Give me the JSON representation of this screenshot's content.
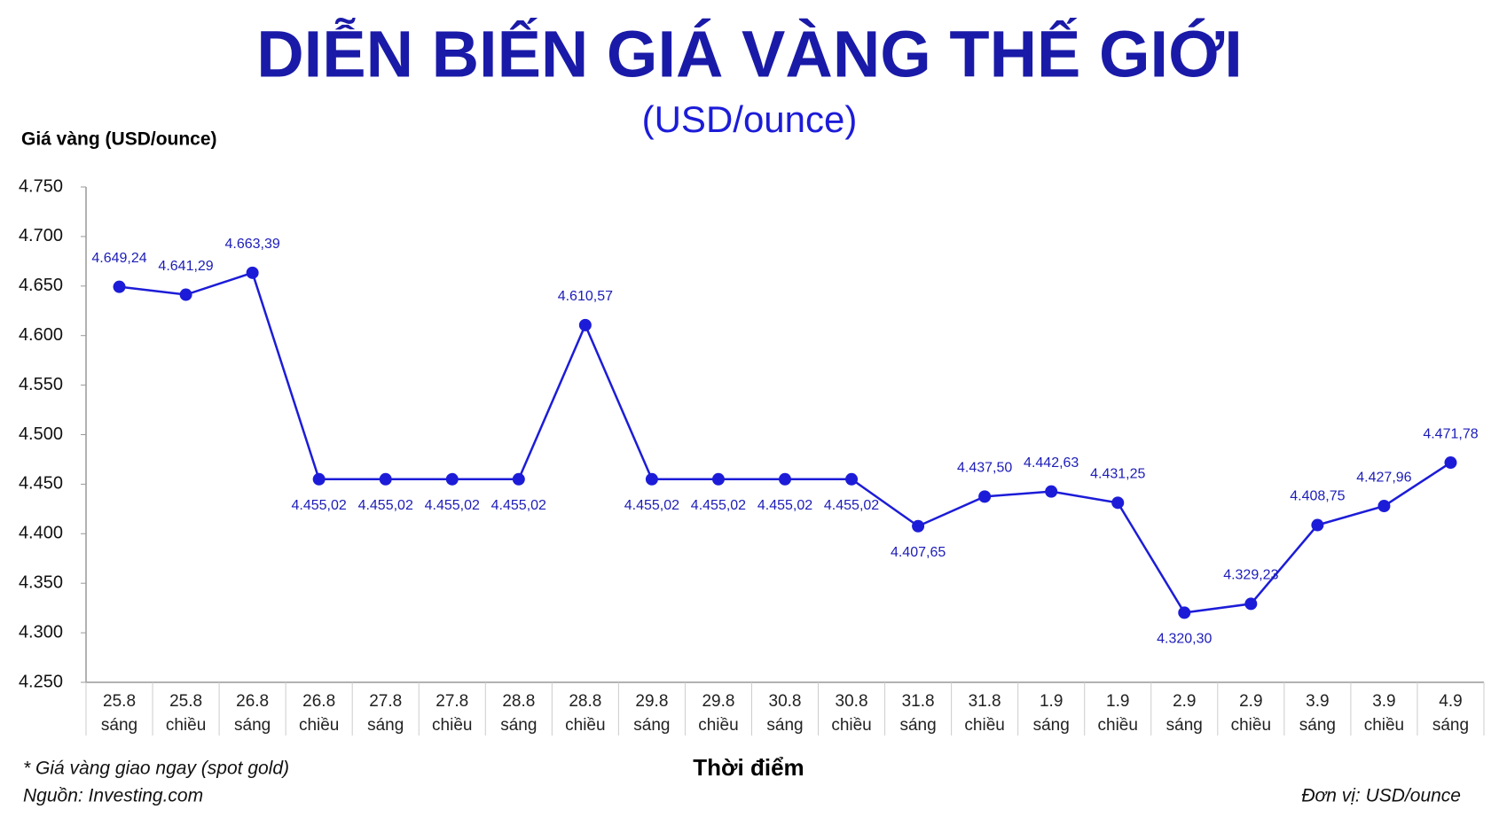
{
  "chart_data": {
    "type": "line",
    "title": "DIỄN BIẾN GIÁ VÀNG THẾ GIỚI",
    "subtitle": "(USD/ounce)",
    "y_label": "Giá vàng (USD/ounce)",
    "x_label": "Thời điểm",
    "note": "* Giá vàng giao ngay (spot gold)",
    "source": "Nguồn: Investing.com",
    "unit": "Đơn vị: USD/ounce",
    "categories": [
      [
        "25.8",
        "sáng"
      ],
      [
        "25.8",
        "chiều"
      ],
      [
        "26.8",
        "sáng"
      ],
      [
        "26.8",
        "chiều"
      ],
      [
        "27.8",
        "sáng"
      ],
      [
        "27.8",
        "chiều"
      ],
      [
        "28.8",
        "sáng"
      ],
      [
        "28.8",
        "chiều"
      ],
      [
        "29.8",
        "sáng"
      ],
      [
        "29.8",
        "chiều"
      ],
      [
        "30.8",
        "sáng"
      ],
      [
        "30.8",
        "chiều"
      ],
      [
        "31.8",
        "sáng"
      ],
      [
        "31.8",
        "chiều"
      ],
      [
        "1.9",
        "sáng"
      ],
      [
        "1.9",
        "chiều"
      ],
      [
        "2.9",
        "sáng"
      ],
      [
        "2.9",
        "chiều"
      ],
      [
        "3.9",
        "sáng"
      ],
      [
        "3.9",
        "chiều"
      ],
      [
        "4.9",
        "sáng"
      ]
    ],
    "series": [
      {
        "name": "Giá vàng",
        "color": "#1c1cd8",
        "values": [
          4649.24,
          4641.29,
          4663.39,
          4455.02,
          4455.02,
          4455.02,
          4455.02,
          4610.57,
          4455.02,
          4455.02,
          4455.02,
          4455.02,
          4407.65,
          4437.5,
          4442.63,
          4431.25,
          4320.3,
          4329.23,
          4408.75,
          4427.96,
          4471.78
        ],
        "value_labels": [
          "4.649,24",
          "4.641,29",
          "4.663,39",
          "4.455,02",
          "4.455,02",
          "4.455,02",
          "4.455,02",
          "4.610,57",
          "4.455,02",
          "4.455,02",
          "4.455,02",
          "4.455,02",
          "4.407,65",
          "4.437,50",
          "4.442,63",
          "4.431,25",
          "4.320,30",
          "4.329,23",
          "4.408,75",
          "4.427,96",
          "4.471,78"
        ]
      }
    ],
    "ylim": [
      4250,
      4750
    ],
    "yticks": [
      {
        "value": 4250,
        "label": "4.250"
      },
      {
        "value": 4300,
        "label": "4.300"
      },
      {
        "value": 4350,
        "label": "4.350"
      },
      {
        "value": 4400,
        "label": "4.400"
      },
      {
        "value": 4450,
        "label": "4.450"
      },
      {
        "value": 4500,
        "label": "4.500"
      },
      {
        "value": 4550,
        "label": "4.550"
      },
      {
        "value": 4600,
        "label": "4.600"
      },
      {
        "value": 4650,
        "label": "4.650"
      },
      {
        "value": 4700,
        "label": "4.700"
      },
      {
        "value": 4750,
        "label": "4.750"
      }
    ],
    "grid": false
  }
}
